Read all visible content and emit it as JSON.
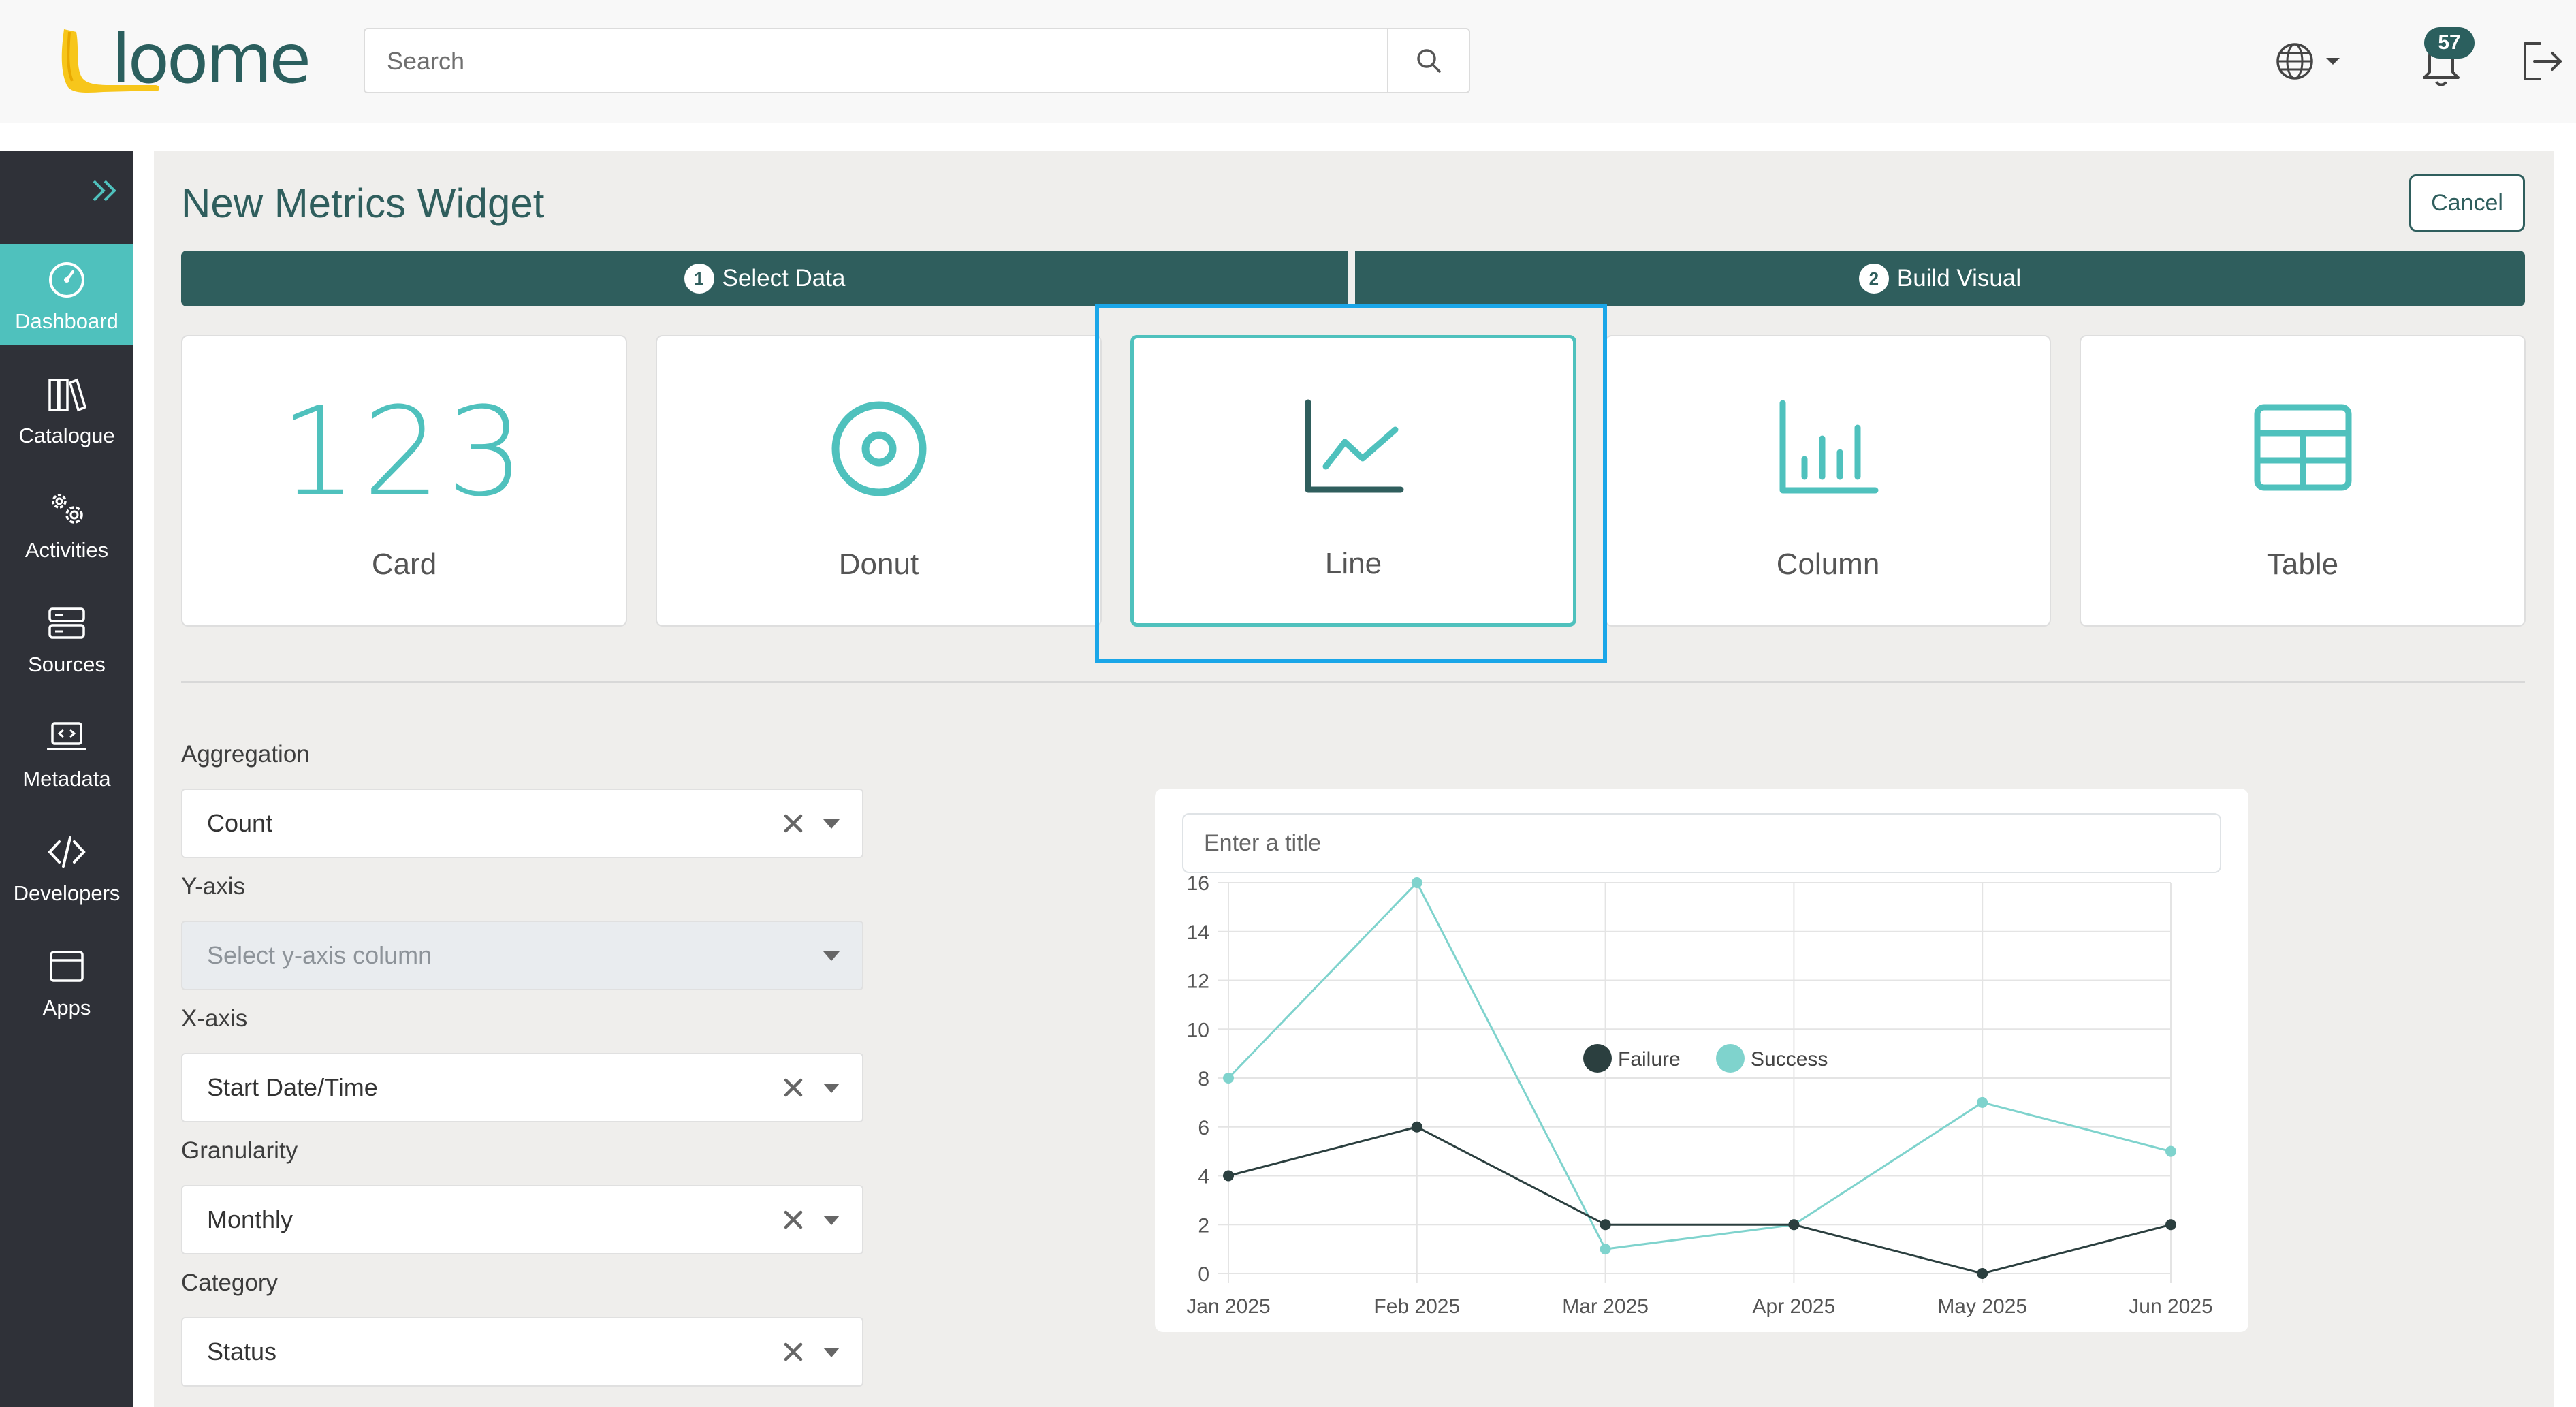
{
  "header": {
    "logo_text": "loome",
    "search_placeholder": "Search",
    "notification_count": "57",
    "icons": [
      "search-icon",
      "globe-icon",
      "caret-down-icon",
      "bell-icon",
      "logout-icon"
    ]
  },
  "sidebar": {
    "items": [
      {
        "label": "Dashboard",
        "icon": "dashboard-gauge-icon",
        "active": true
      },
      {
        "label": "Catalogue",
        "icon": "books-icon"
      },
      {
        "label": "Activities",
        "icon": "gears-icon"
      },
      {
        "label": "Sources",
        "icon": "server-icon"
      },
      {
        "label": "Metadata",
        "icon": "laptop-code-icon"
      },
      {
        "label": "Developers",
        "icon": "code-icon"
      },
      {
        "label": "Apps",
        "icon": "window-icon"
      }
    ]
  },
  "page": {
    "title": "New Metrics Widget",
    "cancel_label": "Cancel",
    "steps": [
      {
        "num": "1",
        "label": "Select Data"
      },
      {
        "num": "2",
        "label": "Build Visual"
      }
    ],
    "visual_types": [
      {
        "label": "Card",
        "icon_text": "123"
      },
      {
        "label": "Donut",
        "icon": "donut-icon"
      },
      {
        "label": "Line",
        "icon": "line-chart-icon",
        "selected": true
      },
      {
        "label": "Column",
        "icon": "column-chart-icon"
      },
      {
        "label": "Table",
        "icon": "table-icon"
      }
    ]
  },
  "form": {
    "aggregation": {
      "label": "Aggregation",
      "value": "Count"
    },
    "yaxis": {
      "label": "Y-axis",
      "placeholder": "Select y-axis column"
    },
    "xaxis": {
      "label": "X-axis",
      "value": "Start Date/Time"
    },
    "granularity": {
      "label": "Granularity",
      "value": "Monthly"
    },
    "category": {
      "label": "Category",
      "value": "Status"
    }
  },
  "chart_panel": {
    "title_placeholder": "Enter a title"
  },
  "colors": {
    "brand_teal": "#2f5e5d",
    "accent": "#4fc1bd",
    "sidebar_bg": "#2f3138",
    "selection_outline": "#1aa6e8"
  },
  "chart_data": {
    "type": "line",
    "x": [
      "Jan 2025",
      "Feb 2025",
      "Mar 2025",
      "Apr 2025",
      "May 2025",
      "Jun 2025"
    ],
    "series": [
      {
        "name": "Failure",
        "color": "#2b3f3f",
        "values": [
          4,
          6,
          2,
          2,
          0,
          2
        ]
      },
      {
        "name": "Success",
        "color": "#7fd3cd",
        "values": [
          8,
          16,
          1,
          2,
          7,
          5
        ]
      }
    ],
    "yticks": [
      "0",
      "2",
      "4",
      "6",
      "8",
      "10",
      "12",
      "14",
      "16"
    ],
    "ylim": [
      0,
      16
    ],
    "grid": true,
    "legend": "top-center"
  }
}
